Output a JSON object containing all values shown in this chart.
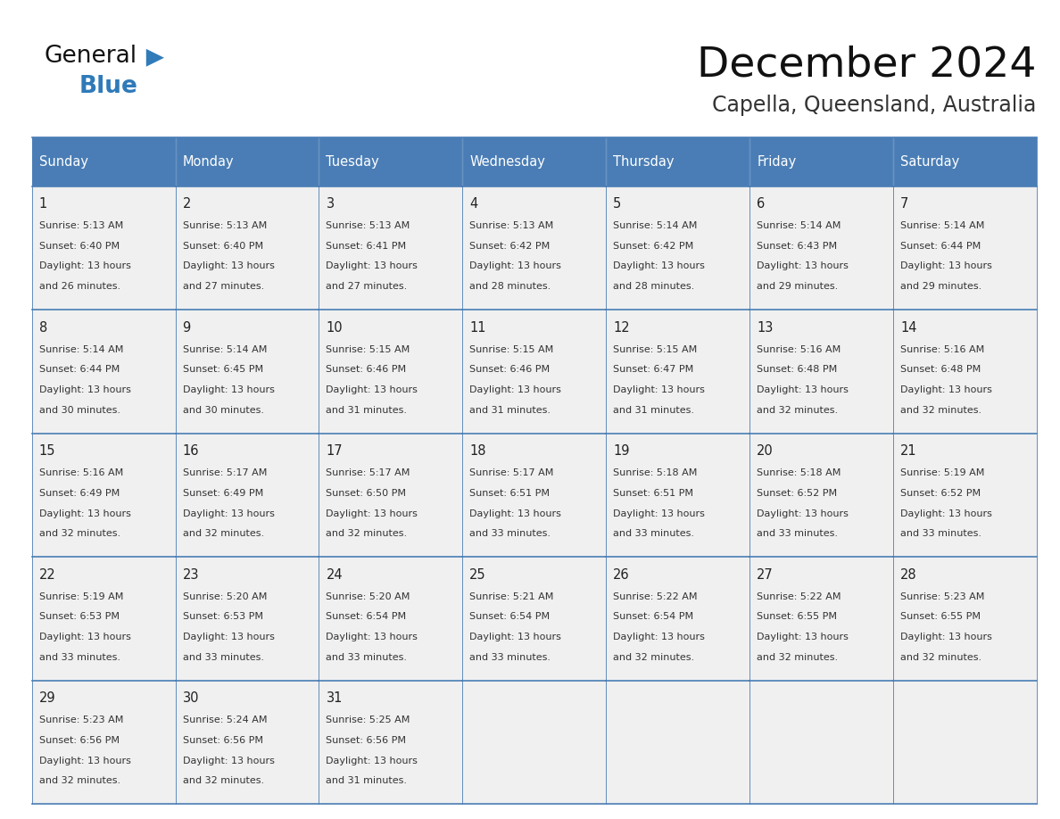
{
  "title": "December 2024",
  "subtitle": "Capella, Queensland, Australia",
  "days_of_week": [
    "Sunday",
    "Monday",
    "Tuesday",
    "Wednesday",
    "Thursday",
    "Friday",
    "Saturday"
  ],
  "header_bg_color": "#4a7db5",
  "header_text_color": "#ffffff",
  "cell_bg_color": "#f0f0f0",
  "border_color": "#4a7db5",
  "day_number_color": "#222222",
  "cell_text_color": "#333333",
  "title_color": "#111111",
  "subtitle_color": "#333333",
  "general_color": "#111111",
  "blue_color": "#2f7ab9",
  "calendar_data": [
    [
      {
        "day": 1,
        "sunrise": "5:13 AM",
        "sunset": "6:40 PM",
        "dl1": "Daylight: 13 hours",
        "dl2": "and 26 minutes."
      },
      {
        "day": 2,
        "sunrise": "5:13 AM",
        "sunset": "6:40 PM",
        "dl1": "Daylight: 13 hours",
        "dl2": "and 27 minutes."
      },
      {
        "day": 3,
        "sunrise": "5:13 AM",
        "sunset": "6:41 PM",
        "dl1": "Daylight: 13 hours",
        "dl2": "and 27 minutes."
      },
      {
        "day": 4,
        "sunrise": "5:13 AM",
        "sunset": "6:42 PM",
        "dl1": "Daylight: 13 hours",
        "dl2": "and 28 minutes."
      },
      {
        "day": 5,
        "sunrise": "5:14 AM",
        "sunset": "6:42 PM",
        "dl1": "Daylight: 13 hours",
        "dl2": "and 28 minutes."
      },
      {
        "day": 6,
        "sunrise": "5:14 AM",
        "sunset": "6:43 PM",
        "dl1": "Daylight: 13 hours",
        "dl2": "and 29 minutes."
      },
      {
        "day": 7,
        "sunrise": "5:14 AM",
        "sunset": "6:44 PM",
        "dl1": "Daylight: 13 hours",
        "dl2": "and 29 minutes."
      }
    ],
    [
      {
        "day": 8,
        "sunrise": "5:14 AM",
        "sunset": "6:44 PM",
        "dl1": "Daylight: 13 hours",
        "dl2": "and 30 minutes."
      },
      {
        "day": 9,
        "sunrise": "5:14 AM",
        "sunset": "6:45 PM",
        "dl1": "Daylight: 13 hours",
        "dl2": "and 30 minutes."
      },
      {
        "day": 10,
        "sunrise": "5:15 AM",
        "sunset": "6:46 PM",
        "dl1": "Daylight: 13 hours",
        "dl2": "and 31 minutes."
      },
      {
        "day": 11,
        "sunrise": "5:15 AM",
        "sunset": "6:46 PM",
        "dl1": "Daylight: 13 hours",
        "dl2": "and 31 minutes."
      },
      {
        "day": 12,
        "sunrise": "5:15 AM",
        "sunset": "6:47 PM",
        "dl1": "Daylight: 13 hours",
        "dl2": "and 31 minutes."
      },
      {
        "day": 13,
        "sunrise": "5:16 AM",
        "sunset": "6:48 PM",
        "dl1": "Daylight: 13 hours",
        "dl2": "and 32 minutes."
      },
      {
        "day": 14,
        "sunrise": "5:16 AM",
        "sunset": "6:48 PM",
        "dl1": "Daylight: 13 hours",
        "dl2": "and 32 minutes."
      }
    ],
    [
      {
        "day": 15,
        "sunrise": "5:16 AM",
        "sunset": "6:49 PM",
        "dl1": "Daylight: 13 hours",
        "dl2": "and 32 minutes."
      },
      {
        "day": 16,
        "sunrise": "5:17 AM",
        "sunset": "6:49 PM",
        "dl1": "Daylight: 13 hours",
        "dl2": "and 32 minutes."
      },
      {
        "day": 17,
        "sunrise": "5:17 AM",
        "sunset": "6:50 PM",
        "dl1": "Daylight: 13 hours",
        "dl2": "and 32 minutes."
      },
      {
        "day": 18,
        "sunrise": "5:17 AM",
        "sunset": "6:51 PM",
        "dl1": "Daylight: 13 hours",
        "dl2": "and 33 minutes."
      },
      {
        "day": 19,
        "sunrise": "5:18 AM",
        "sunset": "6:51 PM",
        "dl1": "Daylight: 13 hours",
        "dl2": "and 33 minutes."
      },
      {
        "day": 20,
        "sunrise": "5:18 AM",
        "sunset": "6:52 PM",
        "dl1": "Daylight: 13 hours",
        "dl2": "and 33 minutes."
      },
      {
        "day": 21,
        "sunrise": "5:19 AM",
        "sunset": "6:52 PM",
        "dl1": "Daylight: 13 hours",
        "dl2": "and 33 minutes."
      }
    ],
    [
      {
        "day": 22,
        "sunrise": "5:19 AM",
        "sunset": "6:53 PM",
        "dl1": "Daylight: 13 hours",
        "dl2": "and 33 minutes."
      },
      {
        "day": 23,
        "sunrise": "5:20 AM",
        "sunset": "6:53 PM",
        "dl1": "Daylight: 13 hours",
        "dl2": "and 33 minutes."
      },
      {
        "day": 24,
        "sunrise": "5:20 AM",
        "sunset": "6:54 PM",
        "dl1": "Daylight: 13 hours",
        "dl2": "and 33 minutes."
      },
      {
        "day": 25,
        "sunrise": "5:21 AM",
        "sunset": "6:54 PM",
        "dl1": "Daylight: 13 hours",
        "dl2": "and 33 minutes."
      },
      {
        "day": 26,
        "sunrise": "5:22 AM",
        "sunset": "6:54 PM",
        "dl1": "Daylight: 13 hours",
        "dl2": "and 32 minutes."
      },
      {
        "day": 27,
        "sunrise": "5:22 AM",
        "sunset": "6:55 PM",
        "dl1": "Daylight: 13 hours",
        "dl2": "and 32 minutes."
      },
      {
        "day": 28,
        "sunrise": "5:23 AM",
        "sunset": "6:55 PM",
        "dl1": "Daylight: 13 hours",
        "dl2": "and 32 minutes."
      }
    ],
    [
      {
        "day": 29,
        "sunrise": "5:23 AM",
        "sunset": "6:56 PM",
        "dl1": "Daylight: 13 hours",
        "dl2": "and 32 minutes."
      },
      {
        "day": 30,
        "sunrise": "5:24 AM",
        "sunset": "6:56 PM",
        "dl1": "Daylight: 13 hours",
        "dl2": "and 32 minutes."
      },
      {
        "day": 31,
        "sunrise": "5:25 AM",
        "sunset": "6:56 PM",
        "dl1": "Daylight: 13 hours",
        "dl2": "and 31 minutes."
      },
      null,
      null,
      null,
      null
    ]
  ]
}
